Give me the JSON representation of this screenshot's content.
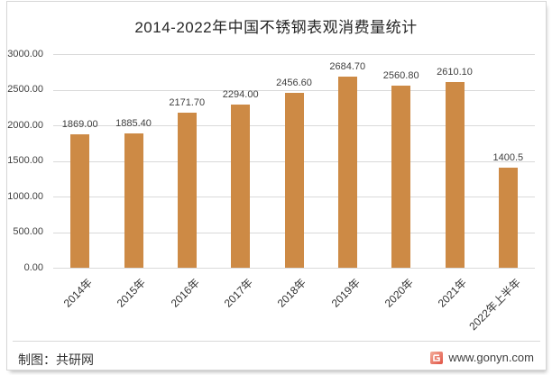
{
  "title": "2014-2022年中国不锈钢表观消费量统计",
  "chart_data": {
    "type": "bar",
    "title": "2014-2022年中国不锈钢表观消费量统计",
    "categories": [
      "2014年",
      "2015年",
      "2016年",
      "2017年",
      "2018年",
      "2019年",
      "2020年",
      "2021年",
      "2022年上半年"
    ],
    "values": [
      1869.0,
      1885.4,
      2171.7,
      2294.0,
      2456.6,
      2684.7,
      2560.8,
      2610.1,
      1400.5
    ],
    "value_labels": [
      "1869.00",
      "1885.40",
      "2171.70",
      "2294.00",
      "2456.60",
      "2684.70",
      "2560.80",
      "2610.10",
      "1400.5"
    ],
    "ylim": [
      0,
      3000
    ],
    "ytick_interval": 500,
    "ytick_labels": [
      "0.00",
      "500.00",
      "1000.00",
      "1500.00",
      "2000.00",
      "2500.00",
      "3000.00"
    ],
    "grid": true,
    "legend": "none",
    "bar_color": "#CD8A45",
    "gridline_color": "#D9D9D9",
    "label_color": "#404040"
  },
  "footer": {
    "credit": "制图：共研网",
    "website": "www.gonyn.com"
  }
}
